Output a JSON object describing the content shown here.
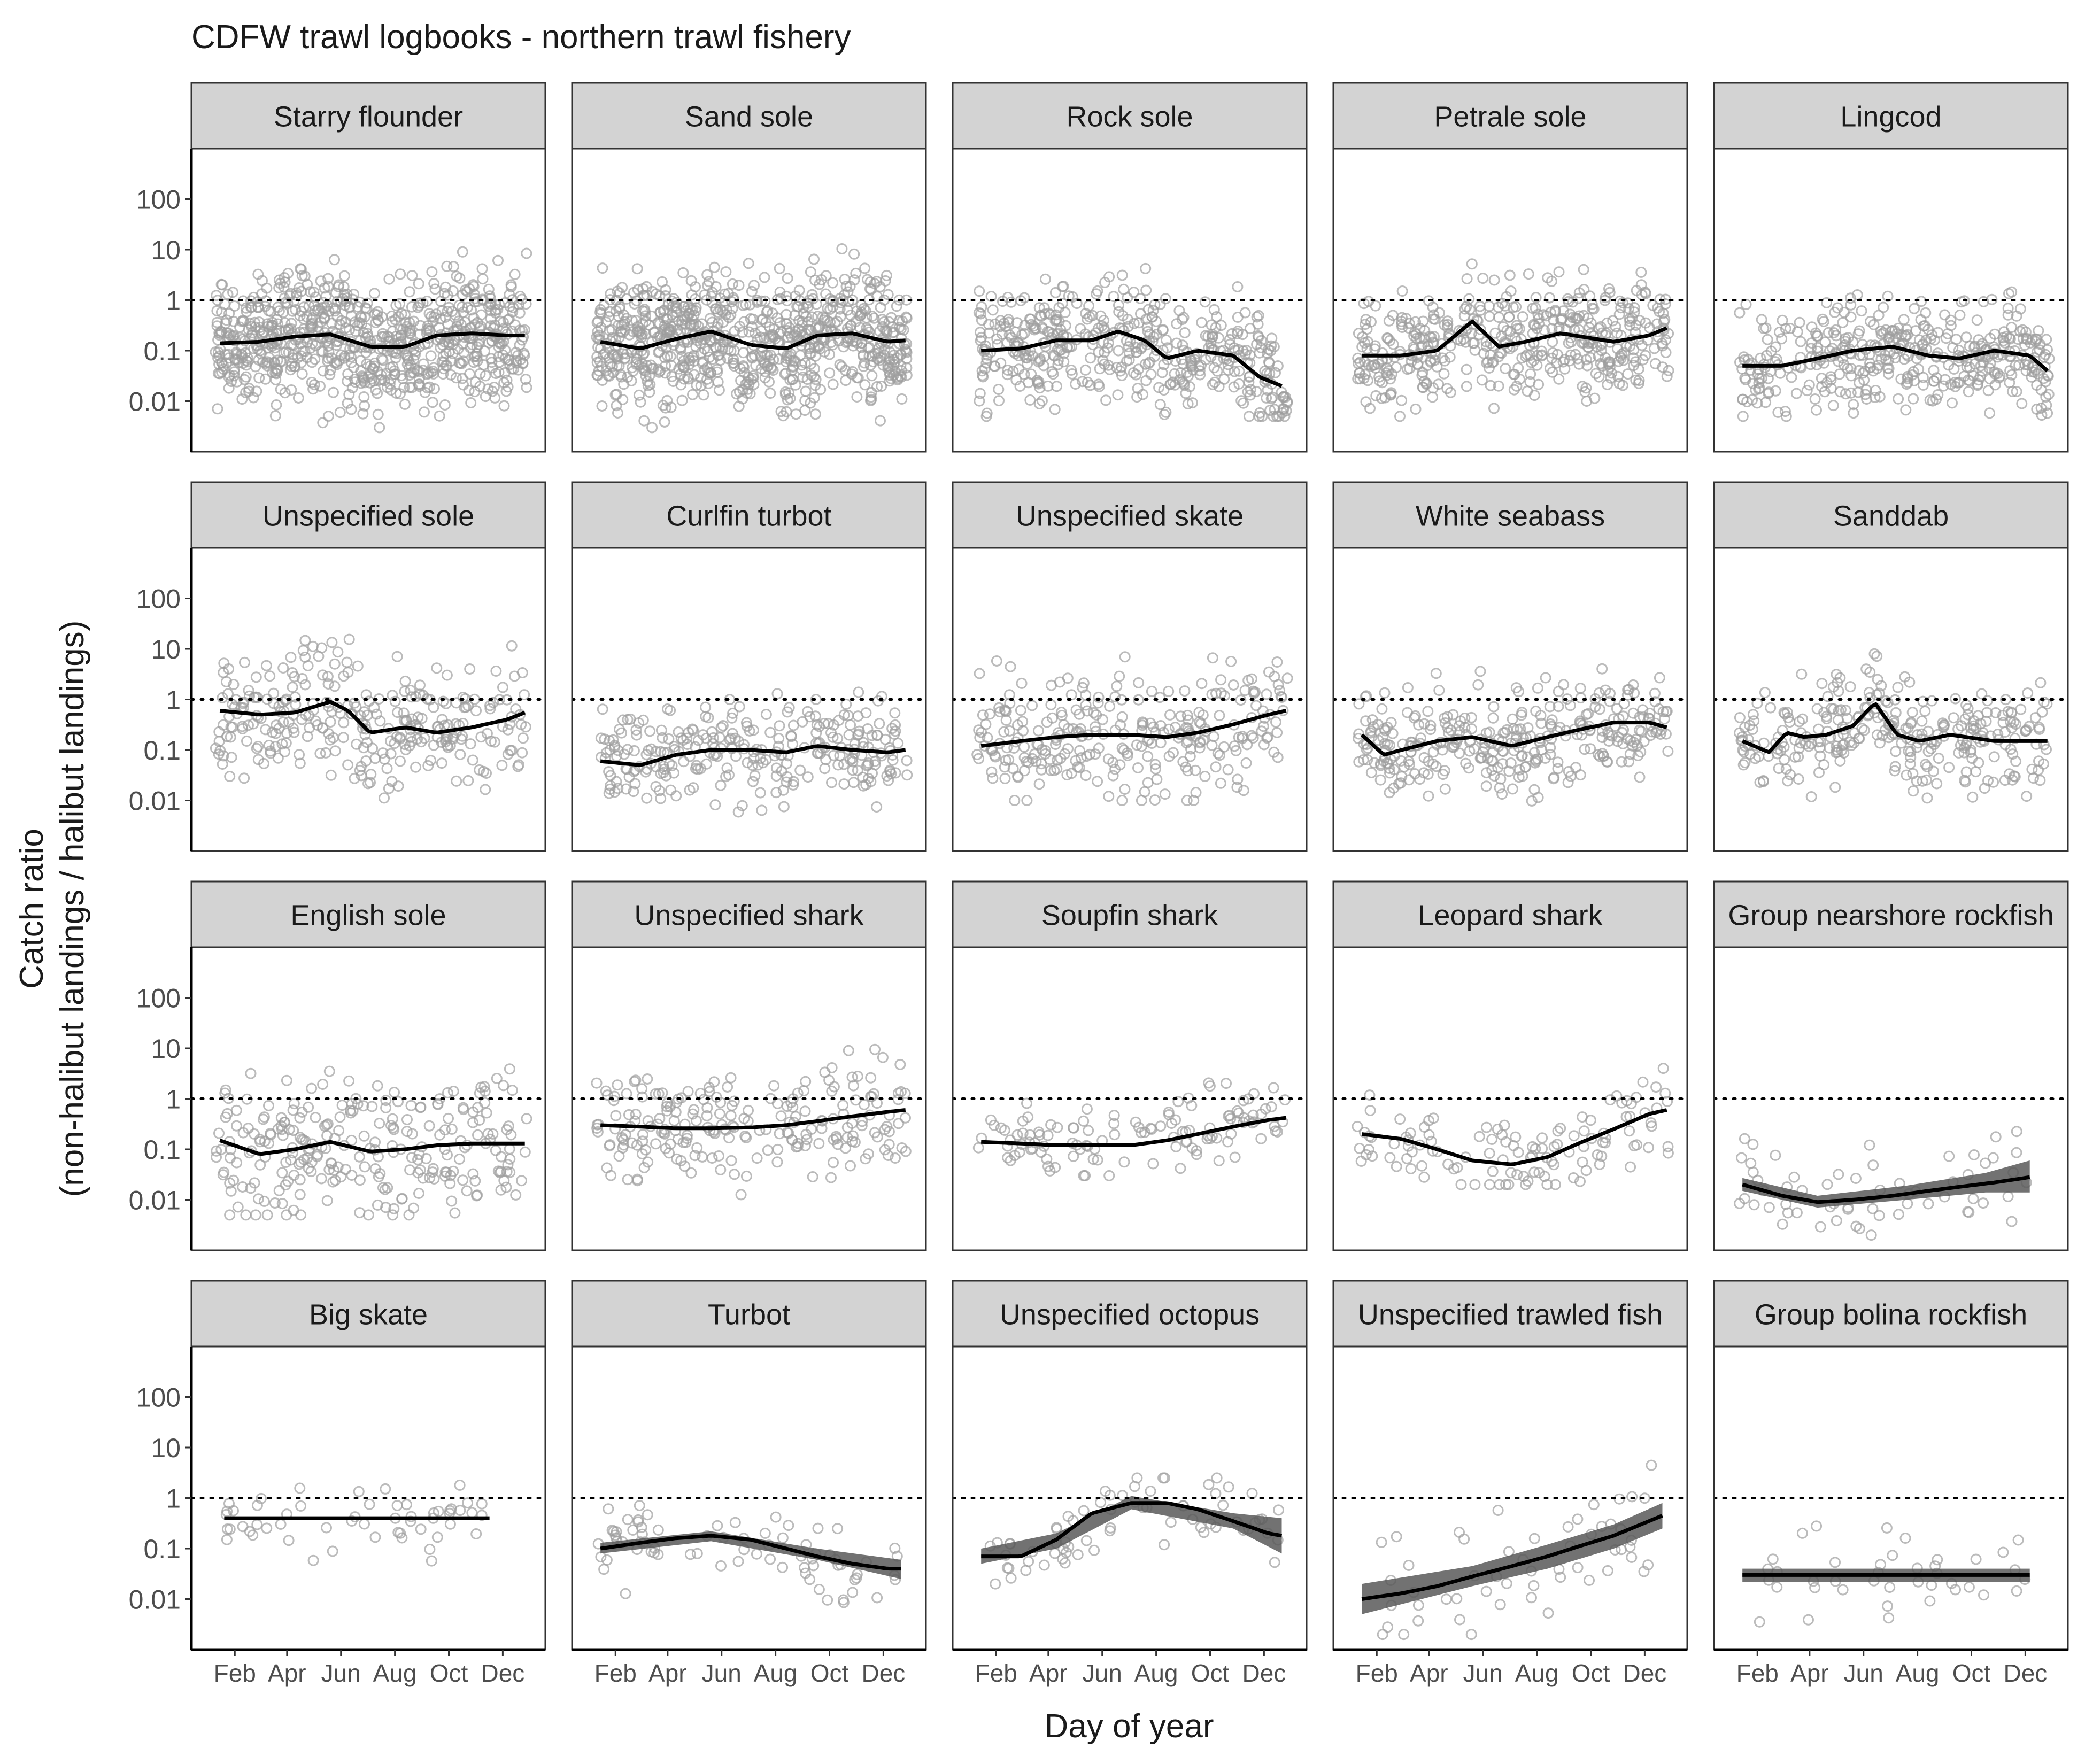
{
  "title": "CDFW trawl logbooks - northern trawl fishery",
  "x_axis_label": "Day of year",
  "y_axis_label_line1": "Catch ratio",
  "y_axis_label_line2": "(non-halibut landings / halibut landings)",
  "colors": {
    "points": "#9e9e9e",
    "smooth": "#000000",
    "band": "#595959",
    "strip": "#d3d3d3",
    "border": "#333333",
    "reference": "#000000"
  },
  "chart_data": {
    "type": "scatter",
    "layout": "facet grid, 4 rows x 5 columns",
    "y_scale": "log10",
    "ylim": [
      0.001,
      1000
    ],
    "y_ticks": [
      0.01,
      0.1,
      1,
      10,
      100
    ],
    "y_tick_labels": [
      "0.01",
      "0.1",
      "1",
      "10",
      "100"
    ],
    "xlim": [
      1,
      365
    ],
    "x_ticks": [
      32,
      91,
      152,
      213,
      274,
      335
    ],
    "x_tick_labels": [
      "Feb",
      "Apr",
      "Jun",
      "Aug",
      "Oct",
      "Dec"
    ],
    "reference_line": 1,
    "grid": false,
    "panels": [
      {
        "name": "Starry flounder",
        "smooth": [
          [
            15,
            0.14
          ],
          [
            60,
            0.15
          ],
          [
            100,
            0.19
          ],
          [
            140,
            0.21
          ],
          [
            185,
            0.12
          ],
          [
            225,
            0.12
          ],
          [
            260,
            0.2
          ],
          [
            300,
            0.22
          ],
          [
            340,
            0.2
          ],
          [
            360,
            0.2
          ]
        ],
        "n_points": 800,
        "x_range": [
          10,
          362
        ],
        "spread": [
          0.003,
          12
        ]
      },
      {
        "name": "Sand sole",
        "smooth": [
          [
            15,
            0.15
          ],
          [
            60,
            0.11
          ],
          [
            100,
            0.17
          ],
          [
            140,
            0.24
          ],
          [
            185,
            0.13
          ],
          [
            225,
            0.11
          ],
          [
            260,
            0.2
          ],
          [
            300,
            0.22
          ],
          [
            340,
            0.15
          ],
          [
            360,
            0.16
          ]
        ],
        "n_points": 800,
        "x_range": [
          10,
          362
        ],
        "spread": [
          0.003,
          12
        ]
      },
      {
        "name": "Rock sole",
        "smooth": [
          [
            15,
            0.1
          ],
          [
            60,
            0.11
          ],
          [
            100,
            0.16
          ],
          [
            140,
            0.16
          ],
          [
            170,
            0.24
          ],
          [
            200,
            0.16
          ],
          [
            225,
            0.07
          ],
          [
            260,
            0.1
          ],
          [
            300,
            0.08
          ],
          [
            330,
            0.03
          ],
          [
            355,
            0.02
          ]
        ],
        "n_points": 450,
        "x_range": [
          10,
          362
        ],
        "spread": [
          0.005,
          6
        ]
      },
      {
        "name": "Petrale sole",
        "smooth": [
          [
            15,
            0.08
          ],
          [
            60,
            0.08
          ],
          [
            100,
            0.1
          ],
          [
            140,
            0.38
          ],
          [
            170,
            0.12
          ],
          [
            200,
            0.15
          ],
          [
            240,
            0.22
          ],
          [
            300,
            0.15
          ],
          [
            340,
            0.2
          ],
          [
            360,
            0.28
          ]
        ],
        "n_points": 450,
        "x_range": [
          10,
          362
        ],
        "spread": [
          0.005,
          6
        ]
      },
      {
        "name": "Lingcod",
        "smooth": [
          [
            15,
            0.05
          ],
          [
            60,
            0.05
          ],
          [
            100,
            0.07
          ],
          [
            140,
            0.1
          ],
          [
            185,
            0.12
          ],
          [
            225,
            0.08
          ],
          [
            260,
            0.07
          ],
          [
            300,
            0.1
          ],
          [
            340,
            0.08
          ],
          [
            360,
            0.04
          ]
        ],
        "n_points": 420,
        "x_range": [
          10,
          362
        ],
        "spread": [
          0.005,
          3
        ]
      },
      {
        "name": "Unspecified sole",
        "smooth": [
          [
            15,
            0.6
          ],
          [
            60,
            0.5
          ],
          [
            100,
            0.55
          ],
          [
            140,
            0.9
          ],
          [
            160,
            0.6
          ],
          [
            185,
            0.22
          ],
          [
            225,
            0.28
          ],
          [
            260,
            0.22
          ],
          [
            300,
            0.28
          ],
          [
            340,
            0.4
          ],
          [
            360,
            0.55
          ]
        ],
        "n_points": 300,
        "x_range": [
          10,
          362
        ],
        "spread": [
          0.01,
          20
        ]
      },
      {
        "name": "Curlfin turbot",
        "smooth": [
          [
            15,
            0.06
          ],
          [
            60,
            0.05
          ],
          [
            100,
            0.08
          ],
          [
            140,
            0.1
          ],
          [
            185,
            0.1
          ],
          [
            225,
            0.09
          ],
          [
            260,
            0.12
          ],
          [
            300,
            0.1
          ],
          [
            340,
            0.09
          ],
          [
            360,
            0.1
          ]
        ],
        "n_points": 280,
        "x_range": [
          15,
          362
        ],
        "spread": [
          0.005,
          3
        ]
      },
      {
        "name": "Unspecified skate",
        "smooth": [
          [
            15,
            0.12
          ],
          [
            60,
            0.15
          ],
          [
            100,
            0.18
          ],
          [
            140,
            0.2
          ],
          [
            185,
            0.2
          ],
          [
            225,
            0.18
          ],
          [
            260,
            0.22
          ],
          [
            300,
            0.32
          ],
          [
            340,
            0.5
          ],
          [
            360,
            0.6
          ]
        ],
        "n_points": 280,
        "x_range": [
          10,
          362
        ],
        "spread": [
          0.01,
          40
        ]
      },
      {
        "name": "White seabass",
        "smooth": [
          [
            15,
            0.2
          ],
          [
            40,
            0.08
          ],
          [
            60,
            0.1
          ],
          [
            100,
            0.15
          ],
          [
            140,
            0.18
          ],
          [
            185,
            0.12
          ],
          [
            225,
            0.18
          ],
          [
            260,
            0.25
          ],
          [
            300,
            0.35
          ],
          [
            340,
            0.35
          ],
          [
            360,
            0.28
          ]
        ],
        "n_points": 330,
        "x_range": [
          10,
          362
        ],
        "spread": [
          0.008,
          6
        ]
      },
      {
        "name": "Sanddab",
        "smooth": [
          [
            15,
            0.15
          ],
          [
            45,
            0.09
          ],
          [
            65,
            0.22
          ],
          [
            85,
            0.18
          ],
          [
            110,
            0.2
          ],
          [
            140,
            0.3
          ],
          [
            165,
            0.85
          ],
          [
            190,
            0.2
          ],
          [
            215,
            0.15
          ],
          [
            250,
            0.2
          ],
          [
            300,
            0.15
          ],
          [
            360,
            0.15
          ]
        ],
        "n_points": 300,
        "x_range": [
          10,
          362
        ],
        "spread": [
          0.01,
          8
        ]
      },
      {
        "name": "English sole",
        "smooth": [
          [
            15,
            0.15
          ],
          [
            60,
            0.08
          ],
          [
            100,
            0.1
          ],
          [
            140,
            0.14
          ],
          [
            185,
            0.09
          ],
          [
            225,
            0.1
          ],
          [
            260,
            0.12
          ],
          [
            300,
            0.13
          ],
          [
            340,
            0.13
          ],
          [
            360,
            0.13
          ]
        ],
        "n_points": 260,
        "x_range": [
          10,
          362
        ],
        "spread": [
          0.005,
          50
        ]
      },
      {
        "name": "Unspecified shark",
        "smooth": [
          [
            15,
            0.3
          ],
          [
            60,
            0.28
          ],
          [
            100,
            0.26
          ],
          [
            140,
            0.26
          ],
          [
            185,
            0.27
          ],
          [
            225,
            0.3
          ],
          [
            260,
            0.36
          ],
          [
            300,
            0.45
          ],
          [
            340,
            0.55
          ],
          [
            360,
            0.6
          ]
        ],
        "n_points": 220,
        "x_range": [
          10,
          362
        ],
        "spread": [
          0.01,
          10
        ]
      },
      {
        "name": "Soupfin shark",
        "smooth": [
          [
            15,
            0.14
          ],
          [
            60,
            0.13
          ],
          [
            100,
            0.12
          ],
          [
            140,
            0.12
          ],
          [
            185,
            0.12
          ],
          [
            225,
            0.15
          ],
          [
            260,
            0.2
          ],
          [
            300,
            0.28
          ],
          [
            340,
            0.38
          ],
          [
            360,
            0.42
          ]
        ],
        "n_points": 120,
        "x_range": [
          10,
          362
        ],
        "spread": [
          0.03,
          4
        ]
      },
      {
        "name": "Leopard shark",
        "smooth": [
          [
            15,
            0.2
          ],
          [
            60,
            0.16
          ],
          [
            100,
            0.1
          ],
          [
            140,
            0.06
          ],
          [
            185,
            0.05
          ],
          [
            225,
            0.07
          ],
          [
            260,
            0.13
          ],
          [
            300,
            0.25
          ],
          [
            340,
            0.5
          ],
          [
            360,
            0.6
          ]
        ],
        "n_points": 120,
        "x_range": [
          10,
          362
        ],
        "spread": [
          0.02,
          4
        ]
      },
      {
        "name": "Group nearshore rockfish",
        "smooth": [
          [
            15,
            0.02
          ],
          [
            60,
            0.012
          ],
          [
            100,
            0.009
          ],
          [
            140,
            0.01
          ],
          [
            185,
            0.012
          ],
          [
            225,
            0.015
          ],
          [
            260,
            0.018
          ],
          [
            300,
            0.022
          ],
          [
            340,
            0.028
          ]
        ],
        "band": [
          [
            15,
            0.015,
            0.027
          ],
          [
            100,
            0.007,
            0.012
          ],
          [
            200,
            0.01,
            0.019
          ],
          [
            290,
            0.014,
            0.034
          ],
          [
            340,
            0.014,
            0.06
          ]
        ],
        "n_points": 60,
        "x_range": [
          10,
          345
        ],
        "spread": [
          0.002,
          0.5
        ]
      },
      {
        "name": "Big skate",
        "smooth": [
          [
            20,
            0.4
          ],
          [
            320,
            0.4
          ]
        ],
        "n_points": 55,
        "x_range": [
          20,
          320
        ],
        "spread": [
          0.04,
          4
        ]
      },
      {
        "name": "Turbot",
        "smooth": [
          [
            15,
            0.1
          ],
          [
            60,
            0.13
          ],
          [
            100,
            0.16
          ],
          [
            140,
            0.18
          ],
          [
            185,
            0.15
          ],
          [
            225,
            0.1
          ],
          [
            260,
            0.07
          ],
          [
            300,
            0.05
          ],
          [
            340,
            0.04
          ],
          [
            355,
            0.04
          ]
        ],
        "band": [
          [
            15,
            0.08,
            0.13
          ],
          [
            140,
            0.14,
            0.22
          ],
          [
            260,
            0.06,
            0.1
          ],
          [
            355,
            0.025,
            0.06
          ]
        ],
        "n_points": 75,
        "x_range": [
          10,
          355
        ],
        "spread": [
          0.006,
          1
        ]
      },
      {
        "name": "Unspecified octopus",
        "smooth": [
          [
            15,
            0.07
          ],
          [
            60,
            0.07
          ],
          [
            100,
            0.15
          ],
          [
            140,
            0.5
          ],
          [
            185,
            0.8
          ],
          [
            225,
            0.8
          ],
          [
            260,
            0.6
          ],
          [
            300,
            0.35
          ],
          [
            340,
            0.2
          ],
          [
            355,
            0.18
          ]
        ],
        "band": [
          [
            15,
            0.05,
            0.1
          ],
          [
            100,
            0.1,
            0.2
          ],
          [
            185,
            0.6,
            1.1
          ],
          [
            300,
            0.25,
            0.5
          ],
          [
            355,
            0.08,
            0.4
          ]
        ],
        "n_points": 70,
        "x_range": [
          15,
          355
        ],
        "spread": [
          0.02,
          2.5
        ]
      },
      {
        "name": "Unspecified trawled fish",
        "smooth": [
          [
            15,
            0.01
          ],
          [
            60,
            0.013
          ],
          [
            100,
            0.018
          ],
          [
            140,
            0.028
          ],
          [
            185,
            0.045
          ],
          [
            225,
            0.07
          ],
          [
            260,
            0.11
          ],
          [
            300,
            0.18
          ],
          [
            340,
            0.35
          ],
          [
            355,
            0.45
          ]
        ],
        "band": [
          [
            15,
            0.005,
            0.02
          ],
          [
            140,
            0.018,
            0.045
          ],
          [
            225,
            0.04,
            0.12
          ],
          [
            300,
            0.1,
            0.3
          ],
          [
            355,
            0.25,
            0.8
          ]
        ],
        "n_points": 55,
        "x_range": [
          15,
          355
        ],
        "spread": [
          0.002,
          10
        ]
      },
      {
        "name": "Group bolina rockfish",
        "smooth": [
          [
            15,
            0.03
          ],
          [
            340,
            0.03
          ]
        ],
        "band": [
          [
            15,
            0.022,
            0.04
          ],
          [
            340,
            0.022,
            0.04
          ]
        ],
        "n_points": 40,
        "x_range": [
          10,
          345
        ],
        "spread": [
          0.002,
          0.8
        ]
      }
    ]
  }
}
